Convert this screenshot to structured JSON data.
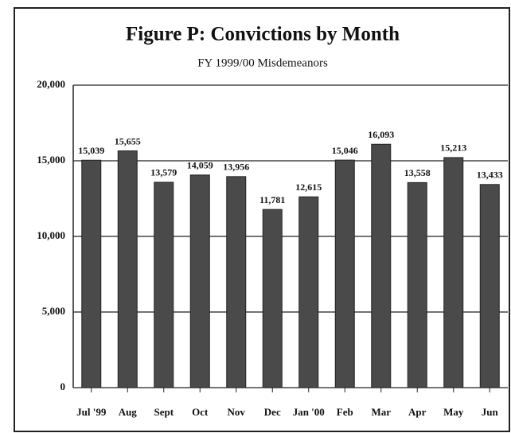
{
  "chart_data": {
    "type": "bar",
    "title": "Figure P:  Convictions by Month",
    "subtitle": "FY 1999/00 Misdemeanors",
    "categories": [
      "Jul '99",
      "Aug",
      "Sept",
      "Oct",
      "Nov",
      "Dec",
      "Jan '00",
      "Feb",
      "Mar",
      "Apr",
      "May",
      "Jun"
    ],
    "values": [
      15039,
      15655,
      13579,
      14059,
      13956,
      11781,
      12615,
      15046,
      16093,
      13558,
      15213,
      13433
    ],
    "value_labels": [
      "15,039",
      "15,655",
      "13,579",
      "14,059",
      "13,956",
      "11,781",
      "12,615",
      "15,046",
      "16,093",
      "13,558",
      "15,213",
      "13,433"
    ],
    "color": "#4a4a4a",
    "ylim": [
      0,
      20000
    ],
    "yticks": [
      0,
      {
        "value": 5000,
        "label": "5,000"
      },
      {
        "value": 10000,
        "label": "10,000"
      },
      {
        "value": 15000,
        "label": "15,000"
      },
      {
        "value": 20000,
        "label": "20,000"
      }
    ],
    "grid": true
  }
}
